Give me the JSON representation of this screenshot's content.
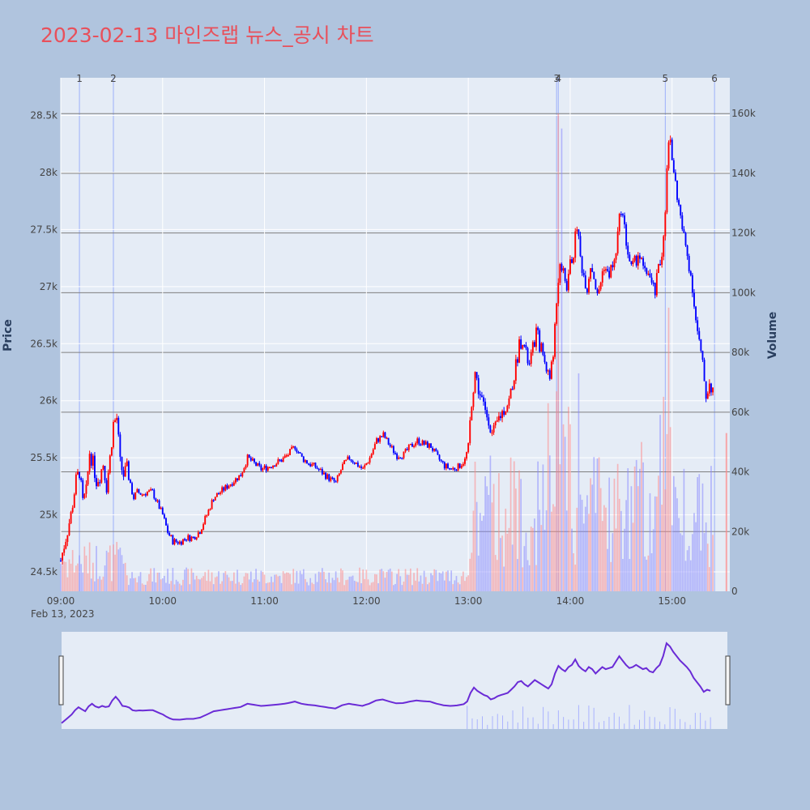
{
  "title": "2023-02-13 마인즈랩 뉴스_공시 차트",
  "chart_data": {
    "type": "candlestick",
    "title": "2023-02-13 마인즈랩 뉴스_공시 차트",
    "ylabel": "Price",
    "y2label": "Volume",
    "x_date_label": "Feb 13, 2023",
    "x_ticks": [
      {
        "t": 0,
        "label": "09:00"
      },
      {
        "t": 60,
        "label": "10:00"
      },
      {
        "t": 120,
        "label": "11:00"
      },
      {
        "t": 180,
        "label": "12:00"
      },
      {
        "t": 240,
        "label": "13:00"
      },
      {
        "t": 300,
        "label": "14:00"
      },
      {
        "t": 360,
        "label": "15:00"
      }
    ],
    "x_range_minutes": [
      0,
      394
    ],
    "y_ticks": [
      {
        "v": 24500,
        "label": "24.5k"
      },
      {
        "v": 25000,
        "label": "25k"
      },
      {
        "v": 25500,
        "label": "25.5k"
      },
      {
        "v": 26000,
        "label": "26k"
      },
      {
        "v": 26500,
        "label": "26.5k"
      },
      {
        "v": 27000,
        "label": "27k"
      },
      {
        "v": 27500,
        "label": "27.5k"
      },
      {
        "v": 28000,
        "label": "28k"
      },
      {
        "v": 28500,
        "label": "28.5k"
      }
    ],
    "ylim": [
      24330,
      28830
    ],
    "y2_ticks": [
      {
        "v": 0,
        "label": "0"
      },
      {
        "v": 20000,
        "label": "20k"
      },
      {
        "v": 40000,
        "label": "40k"
      },
      {
        "v": 60000,
        "label": "60k"
      },
      {
        "v": 80000,
        "label": "80k"
      },
      {
        "v": 100000,
        "label": "100k"
      },
      {
        "v": 120000,
        "label": "120k"
      },
      {
        "v": 140000,
        "label": "140k"
      },
      {
        "v": 160000,
        "label": "160k"
      }
    ],
    "y2lim": [
      0,
      172000
    ],
    "news_markers": [
      {
        "label": "1",
        "t": 11
      },
      {
        "label": "2",
        "t": 31
      },
      {
        "label": "3",
        "t": 292
      },
      {
        "label": "4",
        "t": 293
      },
      {
        "label": "5",
        "t": 356
      },
      {
        "label": "6",
        "t": 385
      }
    ],
    "price_path": [
      [
        0,
        24600
      ],
      [
        3,
        24800
      ],
      [
        6,
        25000
      ],
      [
        9,
        25300
      ],
      [
        11,
        25380
      ],
      [
        13,
        25100
      ],
      [
        15,
        25200
      ],
      [
        17,
        25550
      ],
      [
        19,
        25450
      ],
      [
        21,
        25300
      ],
      [
        23,
        25350
      ],
      [
        25,
        25450
      ],
      [
        27,
        25250
      ],
      [
        29,
        25500
      ],
      [
        31,
        25800
      ],
      [
        33,
        25850
      ],
      [
        35,
        25450
      ],
      [
        37,
        25350
      ],
      [
        39,
        25400
      ],
      [
        41,
        25250
      ],
      [
        43,
        25150
      ],
      [
        45,
        25200
      ],
      [
        48,
        25180
      ],
      [
        51,
        25200
      ],
      [
        54,
        25200
      ],
      [
        57,
        25100
      ],
      [
        60,
        25000
      ],
      [
        63,
        24850
      ],
      [
        66,
        24770
      ],
      [
        70,
        24760
      ],
      [
        74,
        24800
      ],
      [
        78,
        24800
      ],
      [
        82,
        24860
      ],
      [
        86,
        25000
      ],
      [
        90,
        25150
      ],
      [
        94,
        25200
      ],
      [
        98,
        25250
      ],
      [
        102,
        25300
      ],
      [
        106,
        25350
      ],
      [
        110,
        25500
      ],
      [
        114,
        25450
      ],
      [
        118,
        25400
      ],
      [
        122,
        25420
      ],
      [
        126,
        25450
      ],
      [
        130,
        25480
      ],
      [
        134,
        25530
      ],
      [
        138,
        25600
      ],
      [
        142,
        25500
      ],
      [
        146,
        25450
      ],
      [
        150,
        25420
      ],
      [
        154,
        25370
      ],
      [
        158,
        25320
      ],
      [
        162,
        25280
      ],
      [
        166,
        25430
      ],
      [
        170,
        25500
      ],
      [
        174,
        25450
      ],
      [
        178,
        25400
      ],
      [
        182,
        25500
      ],
      [
        186,
        25650
      ],
      [
        190,
        25700
      ],
      [
        194,
        25600
      ],
      [
        198,
        25520
      ],
      [
        202,
        25530
      ],
      [
        206,
        25600
      ],
      [
        210,
        25650
      ],
      [
        214,
        25620
      ],
      [
        218,
        25600
      ],
      [
        222,
        25500
      ],
      [
        226,
        25430
      ],
      [
        230,
        25400
      ],
      [
        234,
        25420
      ],
      [
        238,
        25480
      ],
      [
        240,
        25600
      ],
      [
        242,
        26000
      ],
      [
        244,
        26250
      ],
      [
        246,
        26100
      ],
      [
        248,
        26000
      ],
      [
        250,
        25900
      ],
      [
        252,
        25850
      ],
      [
        254,
        25700
      ],
      [
        256,
        25750
      ],
      [
        258,
        25850
      ],
      [
        260,
        25900
      ],
      [
        262,
        25950
      ],
      [
        264,
        26000
      ],
      [
        266,
        26150
      ],
      [
        268,
        26300
      ],
      [
        270,
        26500
      ],
      [
        272,
        26550
      ],
      [
        274,
        26400
      ],
      [
        276,
        26300
      ],
      [
        278,
        26450
      ],
      [
        280,
        26600
      ],
      [
        282,
        26500
      ],
      [
        284,
        26400
      ],
      [
        286,
        26300
      ],
      [
        288,
        26200
      ],
      [
        290,
        26400
      ],
      [
        292,
        26900
      ],
      [
        294,
        27250
      ],
      [
        296,
        27100
      ],
      [
        298,
        27000
      ],
      [
        300,
        27200
      ],
      [
        302,
        27300
      ],
      [
        304,
        27550
      ],
      [
        306,
        27250
      ],
      [
        308,
        27100
      ],
      [
        310,
        27000
      ],
      [
        312,
        27200
      ],
      [
        314,
        27100
      ],
      [
        316,
        26900
      ],
      [
        318,
        27050
      ],
      [
        320,
        27200
      ],
      [
        322,
        27100
      ],
      [
        324,
        27150
      ],
      [
        326,
        27200
      ],
      [
        328,
        27450
      ],
      [
        330,
        27700
      ],
      [
        332,
        27500
      ],
      [
        334,
        27300
      ],
      [
        336,
        27150
      ],
      [
        338,
        27200
      ],
      [
        340,
        27300
      ],
      [
        342,
        27200
      ],
      [
        344,
        27100
      ],
      [
        346,
        27150
      ],
      [
        348,
        27000
      ],
      [
        350,
        26950
      ],
      [
        352,
        27150
      ],
      [
        354,
        27300
      ],
      [
        356,
        27700
      ],
      [
        358,
        28300
      ],
      [
        360,
        28150
      ],
      [
        362,
        27900
      ],
      [
        364,
        27700
      ],
      [
        366,
        27500
      ],
      [
        368,
        27350
      ],
      [
        370,
        27200
      ],
      [
        372,
        27000
      ],
      [
        374,
        26700
      ],
      [
        376,
        26500
      ],
      [
        378,
        26300
      ],
      [
        380,
        26050
      ],
      [
        382,
        26150
      ],
      [
        384,
        26100
      ]
    ],
    "legend": "none",
    "grid": true
  }
}
